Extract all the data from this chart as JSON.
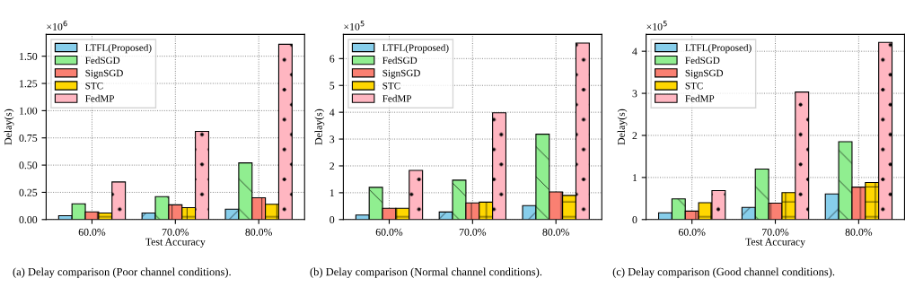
{
  "chart_data": [
    {
      "type": "bar",
      "xlabel": "Test Accuracy",
      "ylabel": "Delay(s)",
      "categories": [
        "60.0%",
        "70.0%",
        "80.0%"
      ],
      "series": [
        {
          "name": "LTFL(Proposed)",
          "color": "#87ceeb",
          "values": [
            0.035,
            0.06,
            0.095
          ]
        },
        {
          "name": "FedSGD",
          "color": "#90ee90",
          "values": [
            0.145,
            0.21,
            0.52
          ]
        },
        {
          "name": "SignSGD",
          "color": "#fa8072",
          "values": [
            0.07,
            0.135,
            0.2
          ]
        },
        {
          "name": "STC",
          "color": "#ffd700",
          "values": [
            0.06,
            0.11,
            0.14
          ]
        },
        {
          "name": "FedMP",
          "color": "#ffb6c1",
          "values": [
            0.345,
            0.81,
            1.61
          ]
        }
      ],
      "ylim": [
        0,
        1.7
      ],
      "yticks": [
        {
          "value": 0,
          "label": "0.00"
        },
        {
          "value": 0.25,
          "label": "0.25"
        },
        {
          "value": 0.5,
          "label": "0.50"
        },
        {
          "value": 0.75,
          "label": "0.75"
        },
        {
          "value": 1.0,
          "label": "1.00"
        },
        {
          "value": 1.25,
          "label": "1.25"
        },
        {
          "value": 1.5,
          "label": "1.50"
        }
      ],
      "grid": true,
      "legend": "top left",
      "annotations": [
        "×10$^{6}$",
        "(a) Delay comparison (Poor channel conditions)."
      ]
    },
    {
      "type": "bar",
      "ylabel": "Delay(s)",
      "categories": [
        "60.0%",
        "70.0%",
        "80.0%"
      ],
      "series": [
        {
          "name": "LTFL(Proposed)",
          "color": "#87ceeb",
          "values": [
            0.17,
            0.28,
            0.52
          ]
        },
        {
          "name": "FedSGD",
          "color": "#90ee90",
          "values": [
            1.2,
            1.47,
            3.18
          ]
        },
        {
          "name": "SignSGD",
          "color": "#fa8072",
          "values": [
            0.42,
            0.62,
            1.03
          ]
        },
        {
          "name": "STC",
          "color": "#ffd700",
          "values": [
            0.42,
            0.65,
            0.9
          ]
        },
        {
          "name": "FedMP",
          "color": "#ffb6c1",
          "values": [
            1.83,
            3.98,
            6.58
          ]
        }
      ],
      "ylim": [
        0,
        6.9
      ],
      "yticks": [
        0,
        1,
        2,
        3,
        4,
        5,
        6
      ],
      "grid": true,
      "legend": "top left",
      "annotations": [
        "×10$^{5}$",
        "(b) Delay comparison (Normal channel conditions)."
      ]
    },
    {
      "type": "bar",
      "xlabel": "Test Accuracy",
      "ylabel": "Delay(s)",
      "categories": [
        "60.0%",
        "70.0%",
        "80.0%"
      ],
      "series": [
        {
          "name": "LTFL(Proposed)",
          "color": "#87ceeb",
          "values": [
            0.16,
            0.29,
            0.61
          ]
        },
        {
          "name": "FedSGD",
          "color": "#90ee90",
          "values": [
            0.49,
            1.2,
            1.85
          ]
        },
        {
          "name": "SignSGD",
          "color": "#fa8072",
          "values": [
            0.2,
            0.39,
            0.77
          ]
        },
        {
          "name": "STC",
          "color": "#ffd700",
          "values": [
            0.4,
            0.64,
            0.88
          ]
        },
        {
          "name": "FedMP",
          "color": "#ffb6c1",
          "values": [
            0.69,
            3.03,
            4.21
          ]
        }
      ],
      "ylim": [
        0,
        4.4
      ],
      "yticks": [
        0,
        1,
        2,
        3,
        4
      ],
      "grid": true,
      "legend": "top left",
      "annotations": [
        "×10$^{5}$",
        "(c) Delay comparison (Good channel conditions)."
      ]
    }
  ]
}
